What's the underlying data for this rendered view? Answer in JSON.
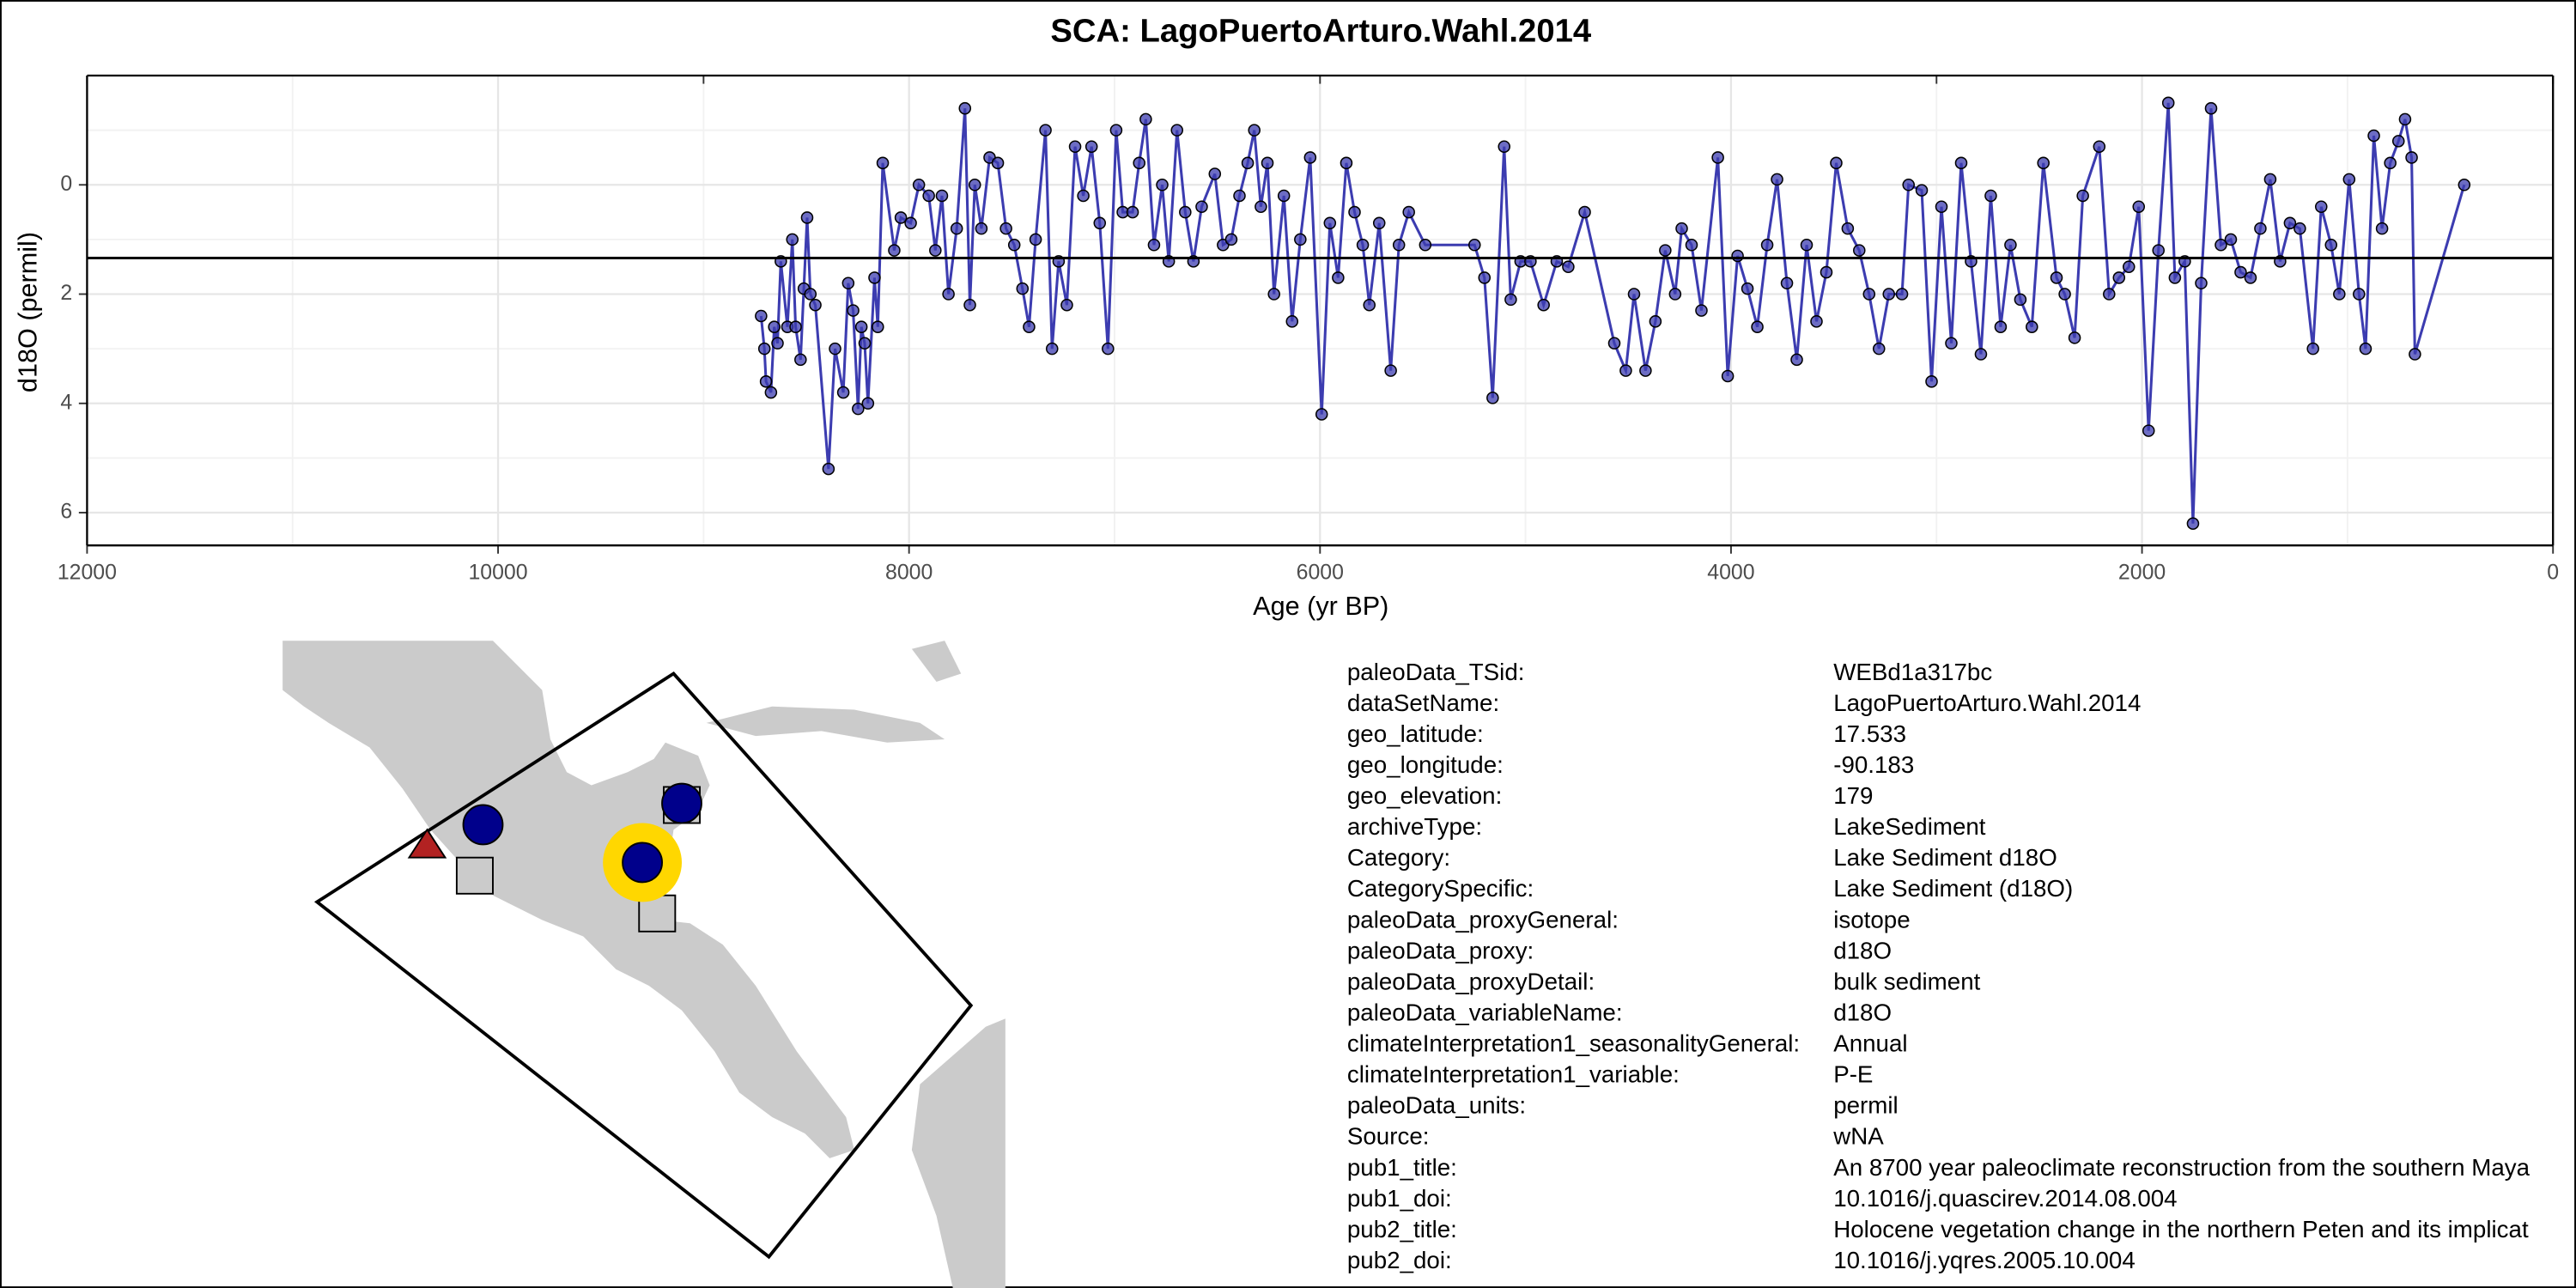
{
  "chart_data": {
    "type": "line",
    "title": "SCA: LagoPuertoArturo.Wahl.2014",
    "x_label": "Age (yr BP)",
    "y_label": "d18O (permil)",
    "xlim": [
      12000,
      0
    ],
    "xticks": [
      12000,
      10000,
      8000,
      6000,
      4000,
      2000,
      0
    ],
    "top_ticks": [
      12000,
      9000,
      6000,
      3000,
      0
    ],
    "ylim": [
      -2,
      6.6
    ],
    "y_reversed": true,
    "yticks": [
      0,
      2,
      4,
      6
    ],
    "hline": 1.34,
    "grid": true,
    "color": "#3c3cb0",
    "x": [
      8720,
      8704,
      8696,
      8672,
      8656,
      8640,
      8624,
      8592,
      8568,
      8552,
      8528,
      8512,
      8496,
      8480,
      8456,
      8392,
      8360,
      8320,
      8296,
      8272,
      8248,
      8232,
      8216,
      8200,
      8168,
      8152,
      8128,
      8072,
      8040,
      7992,
      7952,
      7904,
      7872,
      7840,
      7808,
      7768,
      7728,
      7704,
      7680,
      7648,
      7608,
      7568,
      7528,
      7488,
      7448,
      7416,
      7384,
      7336,
      7304,
      7272,
      7232,
      7192,
      7152,
      7112,
      7072,
      7032,
      6992,
      6960,
      6912,
      6880,
      6848,
      6808,
      6768,
      6736,
      6696,
      6656,
      6616,
      6576,
      6512,
      6472,
      6432,
      6392,
      6352,
      6320,
      6288,
      6256,
      6224,
      6176,
      6136,
      6096,
      6048,
      5992,
      5952,
      5912,
      5872,
      5832,
      5792,
      5760,
      5712,
      5656,
      5616,
      5568,
      5488,
      5248,
      5200,
      5160,
      5104,
      5072,
      5024,
      4976,
      4912,
      4848,
      4792,
      4712,
      4568,
      4512,
      4472,
      4416,
      4368,
      4320,
      4272,
      4240,
      4192,
      4144,
      4064,
      4016,
      3968,
      3920,
      3872,
      3824,
      3776,
      3728,
      3680,
      3632,
      3584,
      3536,
      3488,
      3432,
      3376,
      3328,
      3280,
      3232,
      3168,
      3136,
      3072,
      3024,
      2976,
      2928,
      2880,
      2832,
      2784,
      2736,
      2688,
      2640,
      2592,
      2536,
      2480,
      2416,
      2376,
      2328,
      2288,
      2208,
      2160,
      2112,
      2064,
      2016,
      1968,
      1920,
      1872,
      1840,
      1792,
      1752,
      1712,
      1664,
      1616,
      1568,
      1520,
      1472,
      1424,
      1376,
      1328,
      1280,
      1232,
      1168,
      1128,
      1080,
      1040,
      992,
      944,
      912,
      872,
      832,
      792,
      752,
      720,
      688,
      672,
      432
    ],
    "values": [
      2.4,
      3.0,
      3.6,
      3.8,
      2.6,
      2.9,
      1.4,
      2.6,
      1.0,
      2.6,
      3.2,
      1.9,
      0.6,
      2.0,
      2.2,
      5.2,
      3.0,
      3.8,
      1.8,
      2.3,
      4.1,
      2.6,
      2.9,
      4.0,
      1.7,
      2.6,
      -0.4,
      1.2,
      0.6,
      0.7,
      0,
      0.2,
      1.2,
      0.2,
      2.0,
      0.8,
      -1.4,
      2.2,
      0,
      0.8,
      -0.5,
      -0.4,
      0.8,
      1.1,
      1.9,
      2.6,
      1.0,
      -1.0,
      3.0,
      1.4,
      2.2,
      -0.7,
      0.2,
      -0.7,
      0.7,
      3.0,
      -1.0,
      0.5,
      0.5,
      -0.4,
      -1.2,
      1.1,
      0,
      1.4,
      -1.0,
      0.5,
      1.4,
      0.4,
      -0.2,
      1.1,
      1.0,
      0.2,
      -0.4,
      -1.0,
      0.4,
      -0.4,
      2.0,
      0.2,
      2.5,
      1.0,
      -0.5,
      4.2,
      0.7,
      1.7,
      -0.4,
      0.5,
      1.1,
      2.2,
      0.7,
      3.4,
      1.1,
      0.5,
      1.1,
      1.1,
      1.7,
      3.9,
      -0.7,
      2.1,
      1.4,
      1.4,
      2.2,
      1.4,
      1.5,
      0.5,
      2.9,
      3.4,
      2.0,
      3.4,
      2.5,
      1.2,
      2.0,
      0.8,
      1.1,
      2.3,
      -0.5,
      3.5,
      1.3,
      1.9,
      2.6,
      1.1,
      -0.1,
      1.8,
      3.2,
      1.1,
      2.5,
      1.6,
      -0.4,
      0.8,
      1.2,
      2.0,
      3.0,
      2.0,
      2.0,
      0,
      0.1,
      3.6,
      0.4,
      2.9,
      -0.4,
      1.4,
      3.1,
      0.2,
      2.6,
      1.1,
      2.1,
      2.6,
      -0.4,
      1.7,
      2.0,
      2.8,
      0.2,
      -0.7,
      2.0,
      1.7,
      1.5,
      0.4,
      4.5,
      1.2,
      -1.5,
      1.7,
      1.4,
      6.2,
      1.8,
      -1.4,
      1.1,
      1.0,
      1.6,
      1.7,
      0.8,
      -0.1,
      1.4,
      0.7,
      0.8,
      3.0,
      0.4,
      1.1,
      2.0,
      -0.1,
      2.0,
      3.0,
      -0.9,
      0.8,
      -0.4,
      -0.8,
      -1.2,
      -0.5,
      3.1,
      0
    ]
  },
  "metadata": {
    "rows": [
      [
        "paleoData_TSid:",
        "WEBd1a317bc"
      ],
      [
        "dataSetName:",
        "LagoPuertoArturo.Wahl.2014"
      ],
      [
        "geo_latitude:",
        "17.533"
      ],
      [
        "geo_longitude:",
        "-90.183"
      ],
      [
        "geo_elevation:",
        "179"
      ],
      [
        "archiveType:",
        "LakeSediment"
      ],
      [
        "Category:",
        "Lake Sediment d18O"
      ],
      [
        "CategorySpecific:",
        "Lake Sediment (d18O)"
      ],
      [
        "paleoData_proxyGeneral:",
        "isotope"
      ],
      [
        "paleoData_proxy:",
        "d18O"
      ],
      [
        "paleoData_proxyDetail:",
        "bulk sediment"
      ],
      [
        "paleoData_variableName:",
        "d18O"
      ],
      [
        "climateInterpretation1_seasonalityGeneral:",
        "Annual"
      ],
      [
        "climateInterpretation1_variable:",
        "P-E"
      ],
      [
        "paleoData_units:",
        "permil"
      ],
      [
        "Source:",
        "wNA"
      ],
      [
        "pub1_title:",
        "An 8700 year paleoclimate reconstruction from the southern Maya"
      ],
      [
        "pub1_doi:",
        "10.1016/j.quascirev.2014.08.004"
      ],
      [
        "pub2_title:",
        "Holocene vegetation change in the northern Peten and its implicat"
      ],
      [
        "pub2_doi:",
        "10.1016/j.yqres.2005.10.004"
      ]
    ]
  }
}
